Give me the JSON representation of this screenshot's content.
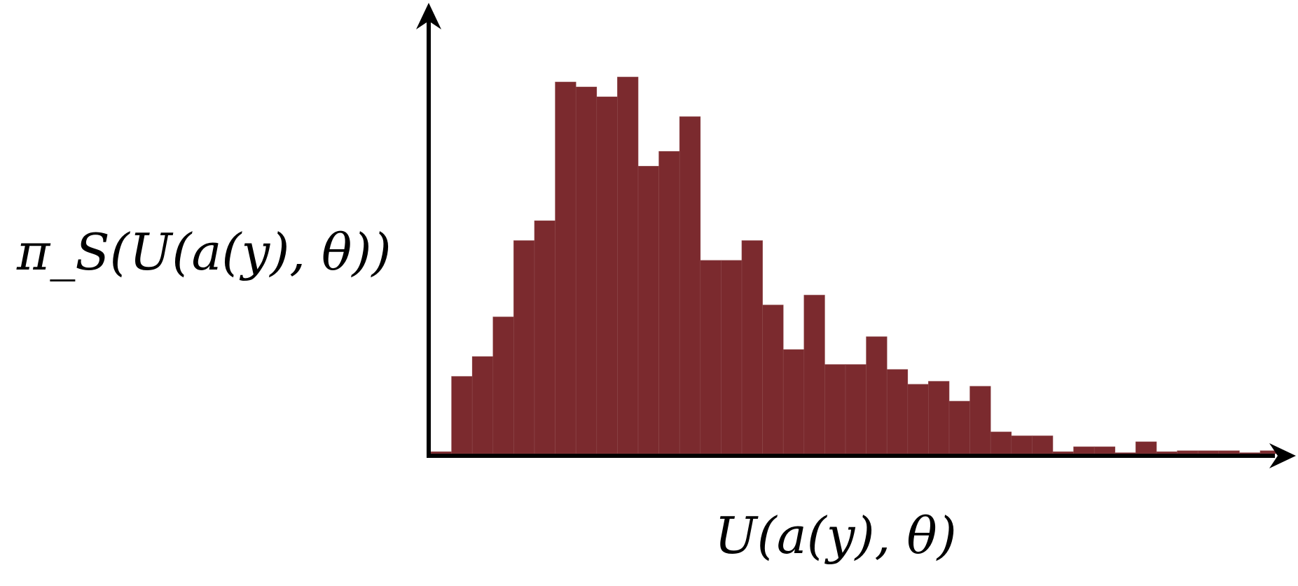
{
  "chart_data": {
    "type": "bar",
    "title": "",
    "xlabel": "U(a(y), θ)",
    "ylabel": "π_S(U(a(y), θ))",
    "ylim": [
      0,
      380
    ],
    "grid": false,
    "legend": "none",
    "bar_color": "#7b2a2e",
    "axis_color": "#000000",
    "values": [
      2,
      78,
      98,
      138,
      215,
      235,
      375,
      370,
      360,
      380,
      290,
      305,
      340,
      195,
      195,
      215,
      150,
      105,
      160,
      90,
      90,
      118,
      85,
      70,
      73,
      53,
      68,
      22,
      18,
      18,
      2,
      7,
      7,
      1,
      12,
      2,
      3,
      3,
      3,
      1,
      3
    ]
  }
}
